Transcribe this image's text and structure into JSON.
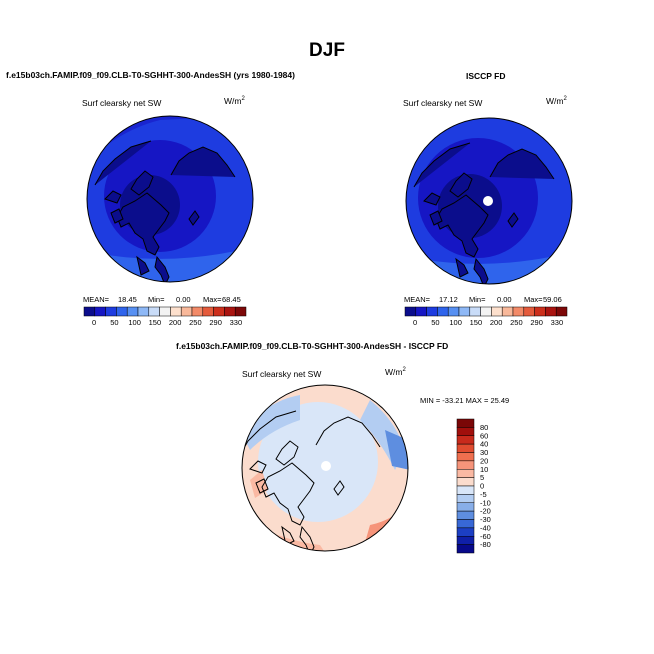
{
  "figure": {
    "season_title": "DJF",
    "model_case": "f.e15b03ch.FAMIP.f09_f09.CLB-T0-SGHHT-300-AndesSH (yrs 1980-1984)",
    "obs_name": "ISCCP FD",
    "diff_title": "f.e15b03ch.FAMIP.f09_f09.CLB-T0-SGHHT-300-AndesSH - ISCCP FD"
  },
  "panels": {
    "model": {
      "variable": "Surf clearsky net SW",
      "units_base": "W/m",
      "units_exp": "2",
      "mean_label": "MEAN=",
      "mean": "18.45",
      "min_label": "Min=",
      "min": "0.00",
      "max_label": "Max=",
      "max": "68.45"
    },
    "obs": {
      "variable": "Surf clearsky net SW",
      "units_base": "W/m",
      "units_exp": "2",
      "mean_label": "MEAN=",
      "mean": "17.12",
      "min_label": "Min=",
      "min": "0.00",
      "max_label": "Max=",
      "max": "59.06"
    },
    "diff": {
      "variable": "Surf clearsky net SW",
      "units_base": "W/m",
      "units_exp": "2",
      "stats_text": "MIN = -33.21  MAX =  25.49"
    }
  },
  "colorbars": {
    "absolute": {
      "orientation": "horizontal",
      "labels": [
        "0",
        "50",
        "100",
        "150",
        "200",
        "250",
        "290",
        "330"
      ],
      "colors": [
        "#0b0d8c",
        "#1616c4",
        "#1e3ce0",
        "#2f64ec",
        "#5790f2",
        "#8eb8f6",
        "#c9dcf8",
        "#f3f3f3",
        "#fde0cd",
        "#f8b89a",
        "#f28a68",
        "#e45b3c",
        "#cc2f1c",
        "#aa1410",
        "#7d0808"
      ]
    },
    "difference": {
      "orientation": "vertical",
      "labels": [
        "80",
        "60",
        "40",
        "30",
        "20",
        "10",
        "5",
        "0",
        "-5",
        "-10",
        "-20",
        "-30",
        "-40",
        "-60",
        "-80"
      ],
      "colors": [
        "#7a0707",
        "#a10f0c",
        "#c82a1c",
        "#e04c30",
        "#ef6f4f",
        "#f6947a",
        "#fab9a3",
        "#fbdccd",
        "#d9e6f8",
        "#b3cdf2",
        "#88aee8",
        "#5e8ee0",
        "#3868d6",
        "#1c3fc4",
        "#0f1fa8",
        "#07098a"
      ]
    }
  }
}
